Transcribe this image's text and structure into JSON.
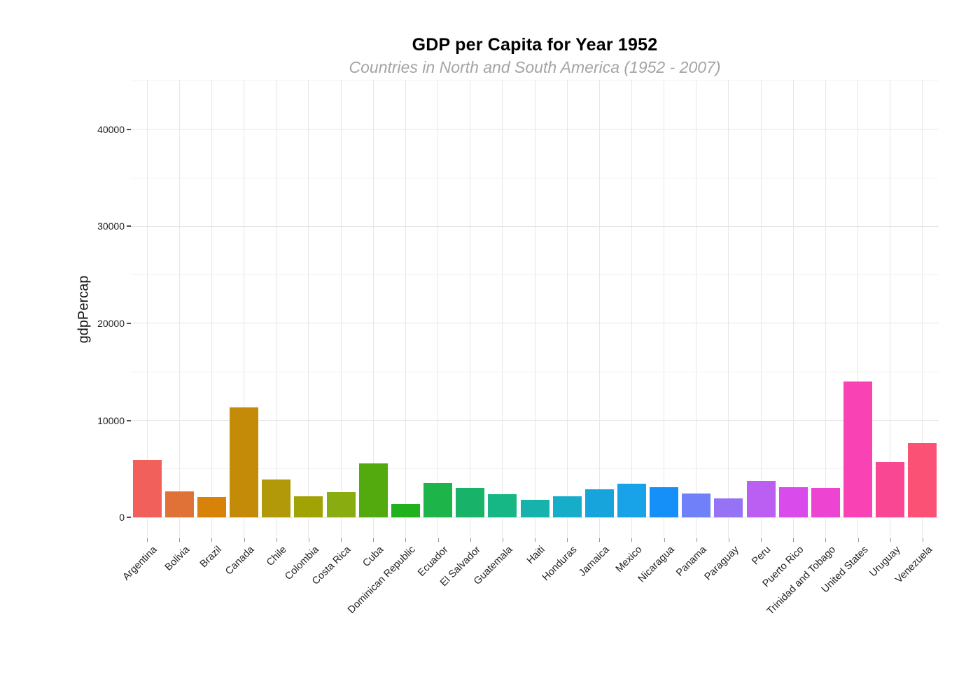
{
  "chart_data": {
    "type": "bar",
    "title": "GDP per Capita for Year 1952",
    "subtitle": "Countries in North and South America (1952 - 2007)",
    "xlabel": "",
    "ylabel": "gdpPercap",
    "categories": [
      "Argentina",
      "Bolivia",
      "Brazil",
      "Canada",
      "Chile",
      "Colombia",
      "Costa Rica",
      "Cuba",
      "Dominican Republic",
      "Ecuador",
      "El Salvador",
      "Guatemala",
      "Haiti",
      "Honduras",
      "Jamaica",
      "Mexico",
      "Nicaragua",
      "Panama",
      "Paraguay",
      "Peru",
      "Puerto Rico",
      "Trinidad and Tobago",
      "United States",
      "Uruguay",
      "Venezuela"
    ],
    "values": [
      5911.3,
      2677.3,
      2108.9,
      11367.2,
      3940.0,
      2144.1,
      2627.0,
      5586.5,
      1397.7,
      3522.1,
      3048.3,
      2428.2,
      1840.4,
      2194.9,
      2898.5,
      3478.1,
      3112.4,
      2480.4,
      1952.3,
      3758.5,
      3082.0,
      3023.3,
      13990.5,
      5716.8,
      7689.8
    ],
    "bar_colors": [
      "#F1605B",
      "#E17237",
      "#D98209",
      "#C48B08",
      "#B2990A",
      "#A0A303",
      "#89AC10",
      "#52AA0E",
      "#21B11C",
      "#1DB54A",
      "#19B269",
      "#16B685",
      "#17B2AC",
      "#16ADC8",
      "#17A4DC",
      "#18A2E8",
      "#1490F8",
      "#7080F8",
      "#9672F5",
      "#BB5FF2",
      "#D94BEB",
      "#ED45D2",
      "#F943B4",
      "#FA4794",
      "#FA5175"
    ],
    "yticks": [
      0,
      10000,
      20000,
      30000,
      40000
    ],
    "ytick_labels": [
      "0",
      "10000",
      "20000",
      "30000",
      "40000"
    ],
    "yticks_minor": [
      5000,
      15000,
      25000,
      35000,
      45000
    ],
    "ylim": [
      0,
      45000
    ],
    "grid": true,
    "legend": false
  },
  "colors": {
    "background": "#FFFFFF",
    "grid_major": "#E4E4E4",
    "grid_minor": "#F2F2F2",
    "title_text": "#000000",
    "subtitle_text": "#A4A4A4",
    "tick_label_text": "#1F1F1F",
    "y_tick_mark": "#4D4D4D",
    "x_tick_mark": "#8F8F8F"
  }
}
